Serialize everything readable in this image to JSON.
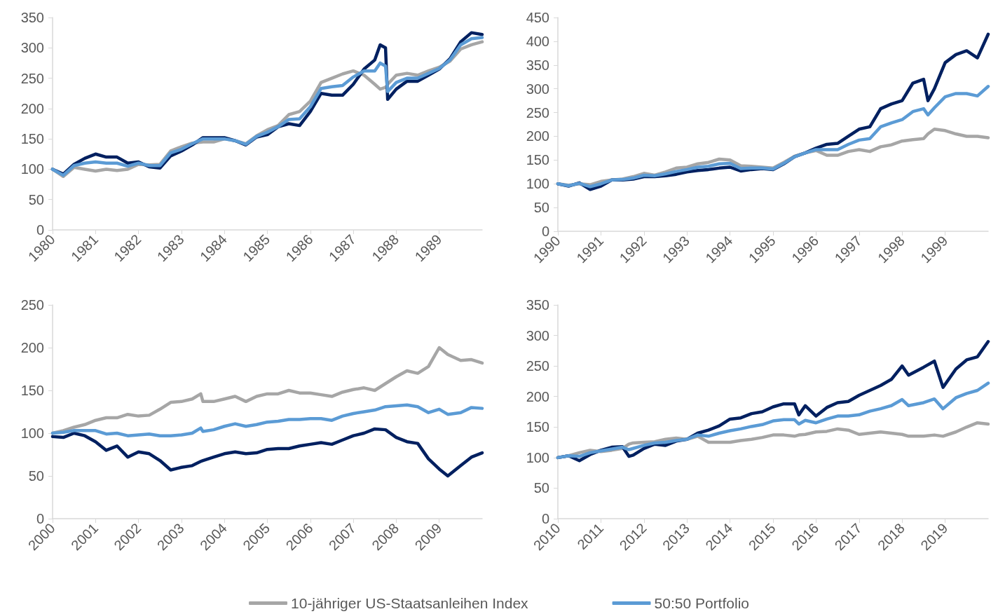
{
  "chart_data": [
    {
      "type": "line",
      "grid": false,
      "xlim": [
        1980,
        1990
      ],
      "xticks": [
        1980,
        1981,
        1982,
        1983,
        1984,
        1985,
        1986,
        1987,
        1988,
        1989
      ],
      "ylim": [
        0,
        350
      ],
      "yticks": [
        0,
        50,
        100,
        150,
        200,
        250,
        300,
        350
      ],
      "x": [
        1980,
        1980.25,
        1980.5,
        1980.75,
        1981,
        1981.25,
        1981.5,
        1981.75,
        1982,
        1982.25,
        1982.5,
        1982.75,
        1983,
        1983.25,
        1983.5,
        1983.75,
        1984,
        1984.25,
        1984.5,
        1984.75,
        1985,
        1985.25,
        1985.5,
        1985.75,
        1986,
        1986.25,
        1986.5,
        1986.75,
        1987,
        1987.25,
        1987.5,
        1987.625,
        1987.75,
        1987.8,
        1988,
        1988.25,
        1988.5,
        1988.75,
        1989,
        1989.25,
        1989.5,
        1989.75,
        1990
      ],
      "series": [
        {
          "color": "#a6a6a6",
          "values": [
            100,
            88,
            103,
            100,
            97,
            100,
            98,
            100,
            108,
            107,
            108,
            130,
            137,
            143,
            145,
            145,
            150,
            147,
            142,
            155,
            165,
            172,
            190,
            195,
            212,
            243,
            250,
            257,
            262,
            255,
            240,
            232,
            235,
            240,
            255,
            258,
            255,
            262,
            268,
            278,
            298,
            305,
            310
          ]
        },
        {
          "color": "#002060",
          "values": [
            100,
            92,
            108,
            118,
            125,
            120,
            120,
            110,
            112,
            104,
            102,
            122,
            130,
            140,
            152,
            152,
            152,
            147,
            140,
            153,
            157,
            170,
            175,
            172,
            195,
            225,
            222,
            222,
            240,
            265,
            280,
            305,
            300,
            215,
            232,
            245,
            245,
            255,
            265,
            282,
            310,
            325,
            322
          ]
        },
        {
          "color": "#5b9bd5",
          "values": [
            100,
            90,
            106,
            110,
            112,
            110,
            110,
            105,
            110,
            106,
            106,
            127,
            133,
            142,
            150,
            150,
            150,
            147,
            141,
            154,
            161,
            170,
            182,
            183,
            203,
            233,
            236,
            238,
            252,
            262,
            262,
            275,
            270,
            228,
            243,
            250,
            250,
            258,
            266,
            280,
            305,
            315,
            317
          ]
        }
      ]
    },
    {
      "type": "line",
      "grid": false,
      "xlim": [
        1990,
        2000
      ],
      "xticks": [
        1990,
        1991,
        1992,
        1993,
        1994,
        1995,
        1996,
        1997,
        1998,
        1999
      ],
      "ylim": [
        0,
        450
      ],
      "yticks": [
        0,
        50,
        100,
        150,
        200,
        250,
        300,
        350,
        400,
        450
      ],
      "x": [
        1990,
        1990.25,
        1990.5,
        1990.75,
        1991,
        1991.25,
        1991.5,
        1991.75,
        1992,
        1992.25,
        1992.5,
        1992.75,
        1993,
        1993.25,
        1993.5,
        1993.75,
        1994,
        1994.25,
        1994.5,
        1994.75,
        1995,
        1995.25,
        1995.5,
        1995.75,
        1996,
        1996.25,
        1996.5,
        1996.75,
        1997,
        1997.25,
        1997.5,
        1997.75,
        1998,
        1998.25,
        1998.5,
        1998.6,
        1998.75,
        1999,
        1999.25,
        1999.5,
        1999.75,
        2000
      ],
      "series": [
        {
          "color": "#a6a6a6",
          "values": [
            100,
            97,
            100,
            98,
            105,
            108,
            110,
            115,
            122,
            118,
            125,
            133,
            135,
            142,
            145,
            152,
            150,
            138,
            137,
            135,
            133,
            145,
            158,
            165,
            170,
            160,
            160,
            168,
            172,
            168,
            178,
            182,
            190,
            193,
            195,
            205,
            215,
            212,
            205,
            200,
            200,
            197
          ]
        },
        {
          "color": "#002060",
          "values": [
            100,
            95,
            102,
            88,
            95,
            108,
            108,
            110,
            115,
            115,
            117,
            120,
            125,
            128,
            130,
            133,
            135,
            127,
            130,
            132,
            130,
            142,
            157,
            165,
            175,
            183,
            185,
            200,
            215,
            220,
            258,
            268,
            275,
            312,
            320,
            275,
            300,
            355,
            372,
            380,
            365,
            415
          ]
        },
        {
          "color": "#5b9bd5",
          "values": [
            100,
            96,
            101,
            94,
            100,
            108,
            109,
            112,
            118,
            117,
            121,
            126,
            130,
            135,
            137,
            142,
            143,
            132,
            133,
            133,
            131,
            143,
            157,
            165,
            172,
            172,
            172,
            183,
            192,
            195,
            220,
            228,
            235,
            252,
            258,
            245,
            260,
            283,
            290,
            290,
            285,
            305
          ]
        }
      ]
    },
    {
      "type": "line",
      "grid": false,
      "legend": "bottom",
      "xlim": [
        2000,
        2010
      ],
      "xticks": [
        2000,
        2001,
        2002,
        2003,
        2004,
        2005,
        2006,
        2007,
        2008,
        2009
      ],
      "ylim": [
        0,
        250
      ],
      "yticks": [
        0,
        50,
        100,
        150,
        200,
        250
      ],
      "x": [
        2000,
        2000.25,
        2000.5,
        2000.75,
        2001,
        2001.25,
        2001.5,
        2001.75,
        2002,
        2002.25,
        2002.5,
        2002.75,
        2003,
        2003.25,
        2003.45,
        2003.5,
        2003.75,
        2004,
        2004.25,
        2004.5,
        2004.75,
        2005,
        2005.25,
        2005.5,
        2005.75,
        2006,
        2006.25,
        2006.5,
        2006.75,
        2007,
        2007.25,
        2007.5,
        2007.75,
        2008,
        2008.25,
        2008.5,
        2008.75,
        2009,
        2009.2,
        2009.5,
        2009.75,
        2010
      ],
      "series": [
        {
          "name": "10-jähriger US-Staatsanleihen Index",
          "color": "#a6a6a6",
          "values": [
            100,
            103,
            107,
            110,
            115,
            118,
            118,
            122,
            120,
            121,
            128,
            136,
            137,
            140,
            146,
            137,
            137,
            140,
            143,
            137,
            143,
            146,
            146,
            150,
            147,
            147,
            145,
            143,
            148,
            151,
            153,
            150,
            158,
            166,
            173,
            170,
            178,
            200,
            192,
            185,
            186,
            182
          ]
        },
        {
          "color": "#002060",
          "values": [
            96,
            95,
            100,
            97,
            90,
            80,
            85,
            72,
            78,
            76,
            68,
            57,
            60,
            62,
            67,
            68,
            72,
            76,
            78,
            76,
            77,
            81,
            82,
            82,
            85,
            87,
            89,
            87,
            92,
            97,
            100,
            105,
            104,
            95,
            90,
            88,
            70,
            58,
            50,
            62,
            72,
            77
          ]
        },
        {
          "name": "50:50 Portfolio",
          "color": "#5b9bd5",
          "values": [
            100,
            101,
            103,
            103,
            103,
            99,
            100,
            97,
            98,
            99,
            97,
            97,
            98,
            100,
            106,
            102,
            104,
            108,
            111,
            108,
            110,
            113,
            114,
            116,
            116,
            117,
            117,
            115,
            120,
            123,
            125,
            127,
            131,
            132,
            133,
            131,
            124,
            128,
            122,
            124,
            130,
            129
          ]
        }
      ]
    },
    {
      "type": "line",
      "grid": false,
      "xlim": [
        2010,
        2020
      ],
      "xticks": [
        2010,
        2011,
        2012,
        2013,
        2014,
        2015,
        2016,
        2017,
        2018,
        2019
      ],
      "ylim": [
        0,
        350
      ],
      "yticks": [
        0,
        50,
        100,
        150,
        200,
        250,
        300,
        350
      ],
      "x": [
        2010,
        2010.25,
        2010.5,
        2010.75,
        2011,
        2011.25,
        2011.5,
        2011.65,
        2011.75,
        2012,
        2012.25,
        2012.5,
        2012.75,
        2013,
        2013.25,
        2013.5,
        2013.75,
        2014,
        2014.25,
        2014.5,
        2014.75,
        2015,
        2015.25,
        2015.5,
        2015.6,
        2015.75,
        2016,
        2016.25,
        2016.5,
        2016.75,
        2017,
        2017.25,
        2017.5,
        2017.75,
        2018,
        2018.15,
        2018.5,
        2018.75,
        2018.95,
        2019.25,
        2019.5,
        2019.75,
        2020
      ],
      "series": [
        {
          "color": "#a6a6a6",
          "values": [
            100,
            103,
            108,
            112,
            110,
            112,
            115,
            122,
            124,
            125,
            126,
            130,
            132,
            130,
            135,
            125,
            125,
            125,
            128,
            130,
            133,
            137,
            137,
            135,
            137,
            138,
            142,
            143,
            147,
            145,
            138,
            140,
            142,
            140,
            138,
            135,
            135,
            137,
            135,
            142,
            150,
            157,
            155
          ]
        },
        {
          "color": "#002060",
          "values": [
            100,
            103,
            95,
            105,
            112,
            117,
            118,
            102,
            104,
            115,
            122,
            120,
            127,
            130,
            140,
            145,
            152,
            163,
            165,
            172,
            175,
            183,
            188,
            188,
            170,
            185,
            168,
            182,
            190,
            192,
            202,
            210,
            218,
            228,
            250,
            235,
            248,
            258,
            215,
            245,
            260,
            265,
            290
          ]
        },
        {
          "color": "#5b9bd5",
          "values": [
            100,
            103,
            102,
            108,
            111,
            114,
            117,
            113,
            115,
            120,
            124,
            125,
            128,
            130,
            137,
            135,
            140,
            144,
            147,
            151,
            154,
            160,
            162,
            162,
            155,
            161,
            157,
            163,
            168,
            168,
            170,
            176,
            180,
            185,
            195,
            185,
            190,
            196,
            180,
            198,
            205,
            210,
            222
          ]
        }
      ]
    }
  ]
}
